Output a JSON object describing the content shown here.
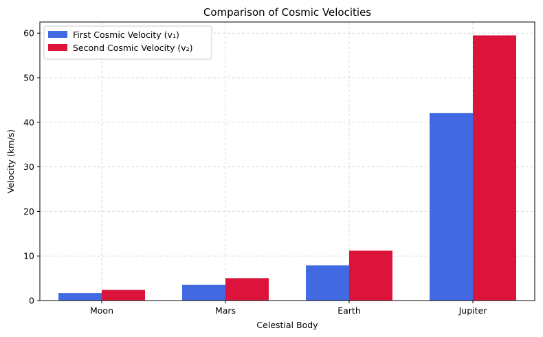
{
  "chart_data": {
    "type": "bar",
    "title": "Comparison of Cosmic Velocities",
    "xlabel": "Celestial Body",
    "ylabel": "Velocity (km/s)",
    "categories": [
      "Moon",
      "Mars",
      "Earth",
      "Jupiter"
    ],
    "series": [
      {
        "name": "First Cosmic Velocity (v₁)",
        "color": "#4169e1",
        "values": [
          1.68,
          3.55,
          7.91,
          42.1
        ]
      },
      {
        "name": "Second Cosmic Velocity (v₂)",
        "color": "#dc143c",
        "values": [
          2.38,
          5.03,
          11.19,
          59.5
        ]
      }
    ],
    "ylim": [
      0,
      62.5
    ],
    "yticks": [
      0,
      10,
      20,
      30,
      40,
      50,
      60
    ],
    "grid": true,
    "legend_position": "top-left"
  }
}
